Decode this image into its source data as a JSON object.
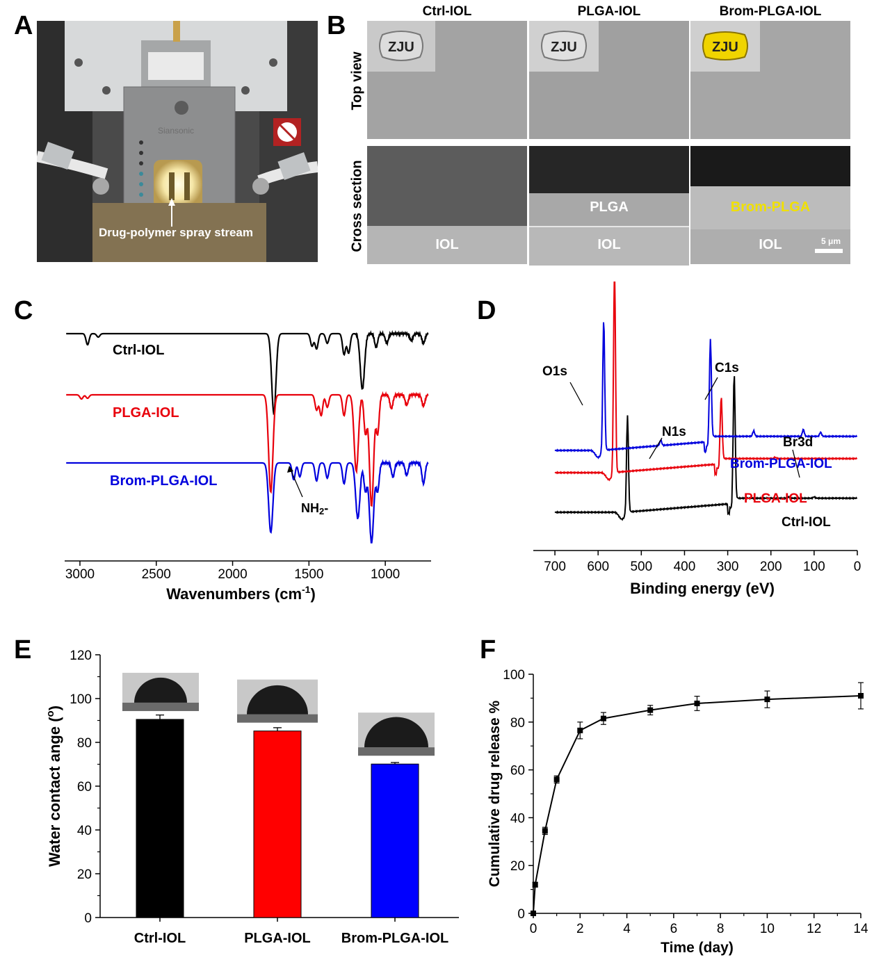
{
  "panels": {
    "A": {
      "label": "A",
      "device_text": "Siansonic",
      "annotation": "Drug-polymer spray stream"
    },
    "B": {
      "label": "B",
      "columns": [
        "Ctrl-IOL",
        "PLGA-IOL",
        "Brom-PLGA-IOL"
      ],
      "rows": [
        "Top view",
        "Cross section"
      ],
      "logo_text": "ZJU",
      "layer_labels": {
        "plga": "PLGA",
        "brom_plga": "Brom-PLGA",
        "iol": "IOL"
      },
      "scale_bar": "5 μm"
    },
    "C": {
      "label": "C"
    },
    "D": {
      "label": "D"
    },
    "E": {
      "label": "E"
    },
    "F": {
      "label": "F"
    }
  },
  "colors": {
    "black": "#000000",
    "red": "#e8000b",
    "blue": "#0000dd",
    "yellow": "#f0e000"
  },
  "chart_data": [
    {
      "id": "C",
      "type": "line",
      "xlabel": "Wavenumbers (cm",
      "xlabel_sup": "-1",
      "xlabel_end": ")",
      "xlim": [
        3100,
        700
      ],
      "xticks": [
        3000,
        2500,
        2000,
        1500,
        1000
      ],
      "series": [
        {
          "name": "Ctrl-IOL",
          "color": "#000000",
          "offset": 0,
          "peaks": [
            [
              2950,
              16
            ],
            [
              2880,
              5
            ],
            [
              1730,
              115
            ],
            [
              1480,
              18
            ],
            [
              1450,
              22
            ],
            [
              1380,
              14
            ],
            [
              1270,
              30
            ],
            [
              1240,
              28
            ],
            [
              1150,
              80
            ],
            [
              1060,
              20
            ],
            [
              990,
              14
            ],
            [
              830,
              10
            ],
            [
              750,
              14
            ]
          ]
        },
        {
          "name": "PLGA-IOL",
          "color": "#e8000b",
          "offset": 1,
          "peaks": [
            [
              2990,
              6
            ],
            [
              2950,
              5
            ],
            [
              1750,
              140
            ],
            [
              1450,
              22
            ],
            [
              1420,
              30
            ],
            [
              1380,
              18
            ],
            [
              1270,
              30
            ],
            [
              1190,
              110
            ],
            [
              1130,
              55
            ],
            [
              1090,
              160
            ],
            [
              1050,
              55
            ],
            [
              960,
              20
            ],
            [
              860,
              15
            ],
            [
              750,
              16
            ]
          ]
        },
        {
          "name": "Brom-PLGA-IOL",
          "color": "#0000dd",
          "offset": 2,
          "peaks": [
            [
              1750,
              100
            ],
            [
              1600,
              24
            ],
            [
              1560,
              20
            ],
            [
              1450,
              26
            ],
            [
              1380,
              22
            ],
            [
              1270,
              30
            ],
            [
              1180,
              80
            ],
            [
              1130,
              40
            ],
            [
              1090,
              115
            ],
            [
              1050,
              40
            ],
            [
              950,
              20
            ],
            [
              860,
              18
            ],
            [
              750,
              30
            ]
          ]
        }
      ],
      "annotations": [
        {
          "text": "NH",
          "sub": "2",
          "tail": "-",
          "x": 1600
        }
      ]
    },
    {
      "id": "D",
      "type": "line",
      "xlabel": "Binding energy (eV)",
      "xlim": [
        750,
        0
      ],
      "xticks": [
        700,
        600,
        500,
        400,
        300,
        200,
        100,
        0
      ],
      "series": [
        {
          "name": "Ctrl-IOL",
          "color": "#000000",
          "shift": 0,
          "peaks": [
            [
              532,
              140
            ],
            [
              285,
              180
            ],
            [
              160,
              2
            ],
            [
              100,
              2
            ]
          ]
        },
        {
          "name": "PLGA-IOL",
          "color": "#e8000b",
          "shift": 30,
          "peaks": [
            [
              532,
              300
            ],
            [
              285,
              90
            ],
            [
              160,
              2
            ]
          ]
        },
        {
          "name": "Brom-PLGA-IOL",
          "color": "#0000dd",
          "shift": 55,
          "peaks": [
            [
              532,
              190
            ],
            [
              400,
              8
            ],
            [
              285,
              140
            ],
            [
              185,
              8
            ],
            [
              70,
              10
            ],
            [
              30,
              6
            ]
          ]
        }
      ],
      "peak_labels": [
        "O1s",
        "N1s",
        "C1s",
        "Br3d"
      ]
    },
    {
      "id": "E",
      "type": "bar",
      "ylabel": "Water contact ange (",
      "ylabel_sup": "o",
      "ylabel_end": ")",
      "ylim": [
        0,
        120
      ],
      "yticks": [
        0,
        20,
        40,
        60,
        80,
        100,
        120
      ],
      "categories": [
        "Ctrl-IOL",
        "PLGA-IOL",
        "Brom-PLGA-IOL"
      ],
      "values": [
        90.5,
        85.2,
        70.1
      ],
      "errors": [
        2.0,
        1.5,
        0.7
      ],
      "bar_colors": [
        "#000000",
        "#ff0000",
        "#0000ff"
      ]
    },
    {
      "id": "F",
      "type": "line",
      "xlabel": "Time (day)",
      "ylabel": "Cumulative drug release %",
      "xlim": [
        0,
        14
      ],
      "ylim": [
        0,
        100
      ],
      "xticks": [
        0,
        2,
        4,
        6,
        8,
        10,
        12,
        14
      ],
      "yticks": [
        0,
        20,
        40,
        60,
        80,
        100
      ],
      "x": [
        0,
        0.08,
        0.5,
        1,
        2,
        3,
        5,
        7,
        10,
        14
      ],
      "y": [
        0,
        12,
        34.5,
        56,
        76.5,
        81.5,
        85,
        87.8,
        89.5,
        91
      ],
      "errors": [
        0,
        1,
        1.5,
        1.5,
        3.5,
        2.5,
        2,
        3,
        3.5,
        5.5
      ]
    }
  ]
}
